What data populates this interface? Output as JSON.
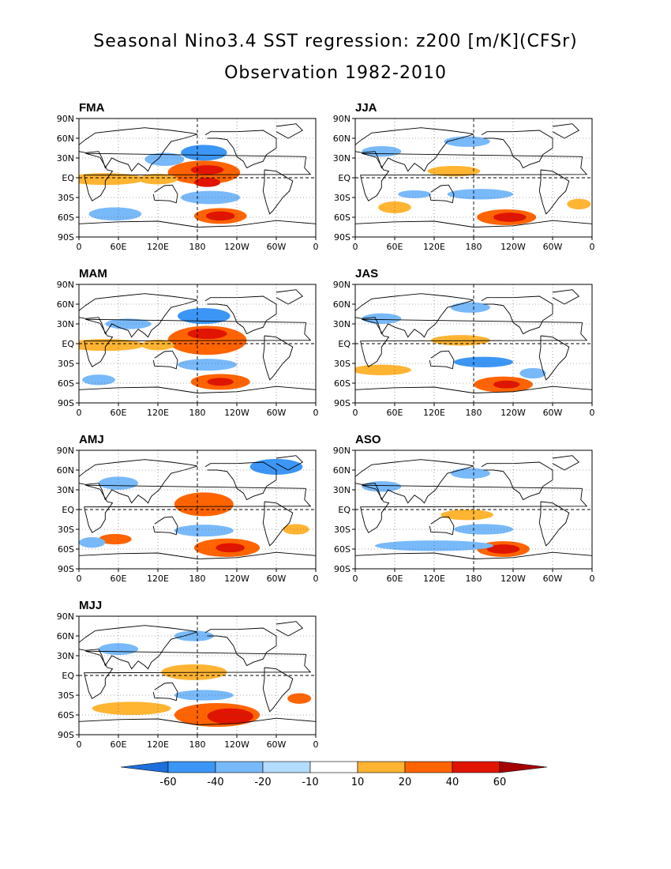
{
  "title": "Seasonal Nino3.4 SST regression: z200 [m/K](CFSr)",
  "subtitle": "Observation 1982-2010",
  "lat_ticks": [
    "90N",
    "60N",
    "30N",
    "EQ",
    "30S",
    "60S",
    "90S"
  ],
  "lon_ticks": [
    "0",
    "60E",
    "120E",
    "180",
    "120W",
    "60W",
    "0"
  ],
  "panels": [
    {
      "season": "FMA",
      "blobs": [
        {
          "lon": 190,
          "lat": 8,
          "rx": 55,
          "ry": 18,
          "level": 2
        },
        {
          "lon": 195,
          "lat": 12,
          "rx": 25,
          "ry": 7,
          "level": 3
        },
        {
          "lon": 195,
          "lat": -7,
          "rx": 20,
          "ry": 7,
          "level": 3
        },
        {
          "lon": 40,
          "lat": -2,
          "rx": 60,
          "ry": 9,
          "level": 1
        },
        {
          "lon": 120,
          "lat": -2,
          "rx": 30,
          "ry": 8,
          "level": 1
        },
        {
          "lon": 215,
          "lat": -58,
          "rx": 40,
          "ry": 12,
          "level": 2
        },
        {
          "lon": 215,
          "lat": -58,
          "rx": 22,
          "ry": 7,
          "level": 3
        },
        {
          "lon": 190,
          "lat": 38,
          "rx": 35,
          "ry": 12,
          "level": -2
        },
        {
          "lon": 130,
          "lat": 28,
          "rx": 30,
          "ry": 10,
          "level": -1
        },
        {
          "lon": 200,
          "lat": -30,
          "rx": 45,
          "ry": 10,
          "level": -1
        },
        {
          "lon": 55,
          "lat": -55,
          "rx": 40,
          "ry": 10,
          "level": -1
        }
      ]
    },
    {
      "season": "JJA",
      "blobs": [
        {
          "lon": 150,
          "lat": 10,
          "rx": 40,
          "ry": 8,
          "level": 1
        },
        {
          "lon": 230,
          "lat": -60,
          "rx": 45,
          "ry": 12,
          "level": 2
        },
        {
          "lon": 235,
          "lat": -60,
          "rx": 25,
          "ry": 7,
          "level": 3
        },
        {
          "lon": 60,
          "lat": -45,
          "rx": 25,
          "ry": 9,
          "level": 1
        },
        {
          "lon": 340,
          "lat": -40,
          "rx": 18,
          "ry": 8,
          "level": 1
        },
        {
          "lon": 190,
          "lat": -25,
          "rx": 50,
          "ry": 8,
          "level": -1
        },
        {
          "lon": 40,
          "lat": 40,
          "rx": 30,
          "ry": 8,
          "level": -1
        },
        {
          "lon": 170,
          "lat": 55,
          "rx": 35,
          "ry": 8,
          "level": -1
        },
        {
          "lon": 90,
          "lat": -25,
          "rx": 25,
          "ry": 6,
          "level": -1
        }
      ]
    },
    {
      "season": "MAM",
      "blobs": [
        {
          "lon": 195,
          "lat": 5,
          "rx": 60,
          "ry": 22,
          "level": 2
        },
        {
          "lon": 195,
          "lat": 15,
          "rx": 30,
          "ry": 8,
          "level": 3
        },
        {
          "lon": 40,
          "lat": -2,
          "rx": 60,
          "ry": 9,
          "level": 1
        },
        {
          "lon": 120,
          "lat": -2,
          "rx": 25,
          "ry": 8,
          "level": 1
        },
        {
          "lon": 215,
          "lat": -58,
          "rx": 45,
          "ry": 12,
          "level": 2
        },
        {
          "lon": 215,
          "lat": -58,
          "rx": 20,
          "ry": 6,
          "level": 3
        },
        {
          "lon": 190,
          "lat": 42,
          "rx": 40,
          "ry": 12,
          "level": -2
        },
        {
          "lon": 75,
          "lat": 30,
          "rx": 35,
          "ry": 8,
          "level": -1
        },
        {
          "lon": 195,
          "lat": -32,
          "rx": 45,
          "ry": 9,
          "level": -1
        },
        {
          "lon": 30,
          "lat": -55,
          "rx": 25,
          "ry": 8,
          "level": -1
        }
      ]
    },
    {
      "season": "JAS",
      "blobs": [
        {
          "lon": 160,
          "lat": 5,
          "rx": 45,
          "ry": 8,
          "level": 1
        },
        {
          "lon": 225,
          "lat": -62,
          "rx": 45,
          "ry": 12,
          "level": 2
        },
        {
          "lon": 230,
          "lat": -62,
          "rx": 20,
          "ry": 6,
          "level": 3
        },
        {
          "lon": 40,
          "lat": -40,
          "rx": 45,
          "ry": 8,
          "level": 1
        },
        {
          "lon": 195,
          "lat": -28,
          "rx": 45,
          "ry": 8,
          "level": -2
        },
        {
          "lon": 40,
          "lat": 38,
          "rx": 30,
          "ry": 8,
          "level": -1
        },
        {
          "lon": 175,
          "lat": 55,
          "rx": 30,
          "ry": 8,
          "level": -1
        },
        {
          "lon": 270,
          "lat": -45,
          "rx": 20,
          "ry": 8,
          "level": -1
        }
      ]
    },
    {
      "season": "AMJ",
      "blobs": [
        {
          "lon": 190,
          "lat": 8,
          "rx": 45,
          "ry": 18,
          "level": 2
        },
        {
          "lon": 225,
          "lat": -58,
          "rx": 50,
          "ry": 14,
          "level": 2
        },
        {
          "lon": 230,
          "lat": -58,
          "rx": 22,
          "ry": 7,
          "level": 3
        },
        {
          "lon": 55,
          "lat": -45,
          "rx": 25,
          "ry": 8,
          "level": 2
        },
        {
          "lon": 330,
          "lat": -30,
          "rx": 20,
          "ry": 8,
          "level": 1
        },
        {
          "lon": 190,
          "lat": -32,
          "rx": 45,
          "ry": 9,
          "level": -1
        },
        {
          "lon": 60,
          "lat": 40,
          "rx": 30,
          "ry": 10,
          "level": -1
        },
        {
          "lon": 300,
          "lat": 65,
          "rx": 40,
          "ry": 12,
          "level": -2
        },
        {
          "lon": 20,
          "lat": -50,
          "rx": 20,
          "ry": 8,
          "level": -1
        }
      ]
    },
    {
      "season": "ASO",
      "blobs": [
        {
          "lon": 170,
          "lat": -8,
          "rx": 40,
          "ry": 8,
          "level": 1
        },
        {
          "lon": 225,
          "lat": -60,
          "rx": 40,
          "ry": 12,
          "level": 2
        },
        {
          "lon": 225,
          "lat": -60,
          "rx": 25,
          "ry": 7,
          "level": 3
        },
        {
          "lon": 195,
          "lat": -30,
          "rx": 45,
          "ry": 8,
          "level": -1
        },
        {
          "lon": 40,
          "lat": 35,
          "rx": 30,
          "ry": 8,
          "level": -1
        },
        {
          "lon": 120,
          "lat": -55,
          "rx": 90,
          "ry": 8,
          "level": -1
        },
        {
          "lon": 175,
          "lat": 55,
          "rx": 30,
          "ry": 8,
          "level": -1
        }
      ]
    },
    {
      "season": "MJJ",
      "blobs": [
        {
          "lon": 175,
          "lat": 5,
          "rx": 50,
          "ry": 12,
          "level": 1
        },
        {
          "lon": 210,
          "lat": -60,
          "rx": 65,
          "ry": 18,
          "level": 2
        },
        {
          "lon": 230,
          "lat": -62,
          "rx": 35,
          "ry": 12,
          "level": 3
        },
        {
          "lon": 80,
          "lat": -50,
          "rx": 60,
          "ry": 10,
          "level": 1
        },
        {
          "lon": 335,
          "lat": -35,
          "rx": 18,
          "ry": 8,
          "level": 2
        },
        {
          "lon": 190,
          "lat": -30,
          "rx": 45,
          "ry": 8,
          "level": -1
        },
        {
          "lon": 60,
          "lat": 40,
          "rx": 30,
          "ry": 9,
          "level": -1
        },
        {
          "lon": 175,
          "lat": 60,
          "rx": 30,
          "ry": 8,
          "level": -1
        }
      ]
    }
  ],
  "colorbar": {
    "labels": [
      "-60",
      "-40",
      "-20",
      "-10",
      "10",
      "20",
      "40",
      "60"
    ],
    "colors": [
      "#1e6edc",
      "#3c96f5",
      "#78b9fa",
      "#b4dcff",
      "#ffffff",
      "#ffb432",
      "#ff6400",
      "#e11400",
      "#a50000"
    ]
  },
  "level_colors": {
    "-3": "#1e6edc",
    "-2": "#3c96f5",
    "-1": "#78b9fa",
    "1": "#ffb432",
    "2": "#ff6400",
    "3": "#e11400"
  }
}
